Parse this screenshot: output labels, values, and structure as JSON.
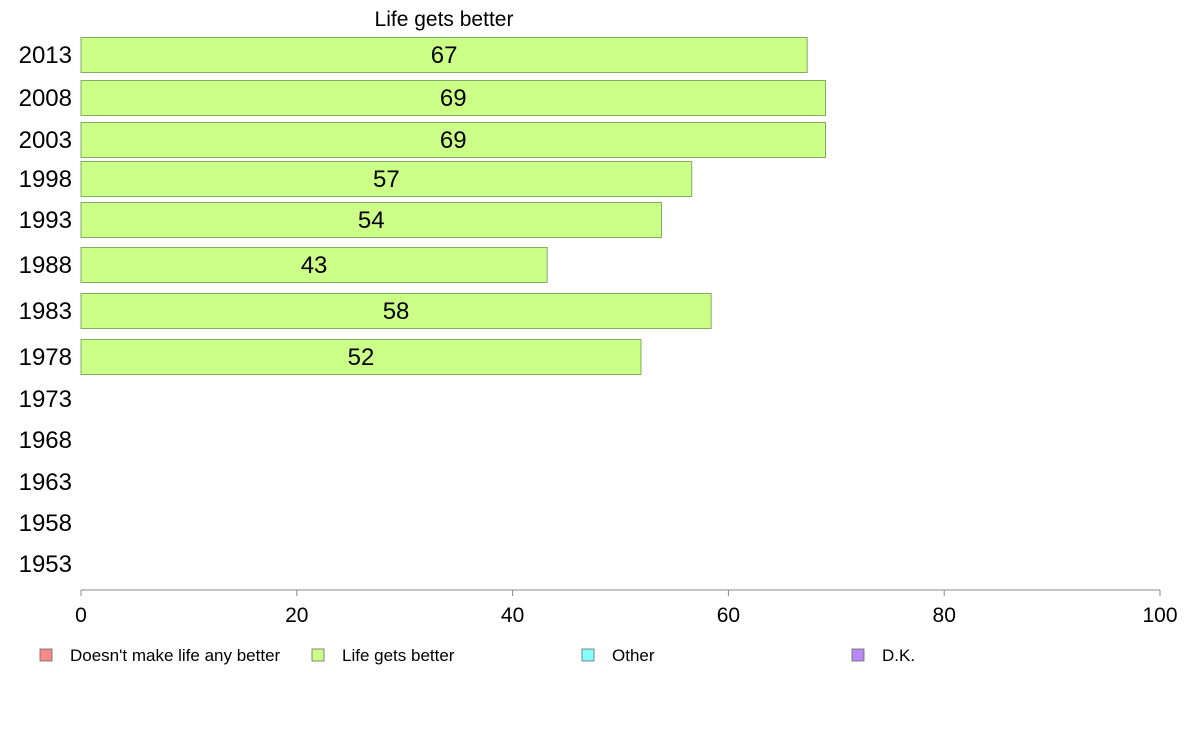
{
  "chart_data": {
    "type": "bar",
    "orientation": "horizontal",
    "title": "Life gets better",
    "categories": [
      "2013",
      "2008",
      "2003",
      "1998",
      "1993",
      "1988",
      "1983",
      "1978",
      "1973",
      "1968",
      "1963",
      "1958",
      "1953"
    ],
    "series": [
      {
        "name": "Life gets better",
        "color": "#ccff88",
        "values": [
          67.3,
          69,
          69,
          56.6,
          53.8,
          43.2,
          58.4,
          51.9,
          null,
          null,
          null,
          null,
          null
        ],
        "labels": [
          "67",
          "69",
          "69",
          "57",
          "54",
          "43",
          "58",
          "52",
          "",
          "",
          "",
          "",
          ""
        ]
      }
    ],
    "xlim": [
      0,
      100
    ],
    "xticks": [
      "0",
      "20",
      "40",
      "60",
      "80",
      "100"
    ],
    "grid": false,
    "legend": {
      "placement": "bottom",
      "entries": [
        {
          "label": "Doesn't make life any better",
          "color": "#f88b88"
        },
        {
          "label": "Life gets better",
          "color": "#ccff88"
        },
        {
          "label": "Other",
          "color": "#88ffff"
        },
        {
          "label": "D.K.",
          "color": "#bb88f8"
        }
      ]
    }
  }
}
